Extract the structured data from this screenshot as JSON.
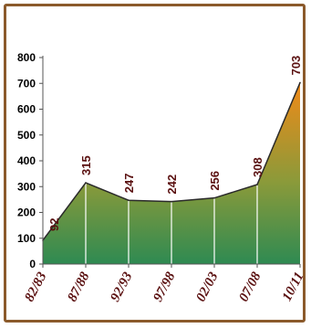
{
  "colors": {
    "frame": "#8b5a2b",
    "area_top": "#f08a18",
    "area_mid": "#8a9a3a",
    "area_bottom": "#2e8a52",
    "line": "#2a2a2a",
    "label": "#5a1010",
    "separator": "#ffffff"
  },
  "chart_data": {
    "type": "area",
    "categories": [
      "82/83",
      "87/88",
      "92/93",
      "97/98",
      "02/03",
      "07/08",
      "10/11"
    ],
    "values": [
      92,
      315,
      247,
      242,
      256,
      308,
      703
    ],
    "data_labels": [
      "92",
      "315",
      "247",
      "242",
      "256",
      "308",
      "703"
    ],
    "y_ticks": [
      "0",
      "100",
      "200",
      "300",
      "400",
      "500",
      "600",
      "700",
      "800"
    ],
    "ylim": [
      0,
      800
    ],
    "title": "",
    "xlabel": "",
    "ylabel": "",
    "grid": false,
    "legend": "none"
  }
}
